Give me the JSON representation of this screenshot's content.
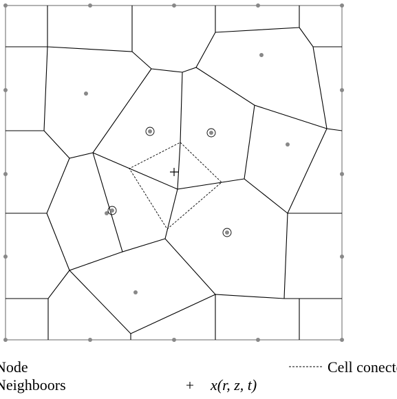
{
  "legend": {
    "items": [
      {
        "label": "Node"
      },
      {
        "label": "Neighboors"
      },
      {
        "label": "Cell conected to x"
      },
      {
        "label": "x(r, z, t)"
      }
    ]
  }
}
